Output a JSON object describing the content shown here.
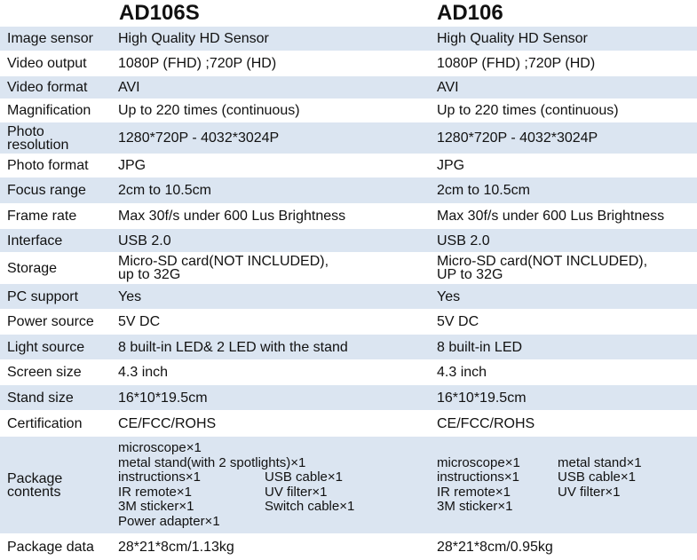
{
  "header": {
    "columns": [
      "AD106S",
      "AD106"
    ]
  },
  "rows": [
    {
      "label": [
        "Image sensor"
      ],
      "values": [
        [
          "High Quality HD Sensor"
        ],
        [
          "High Quality HD Sensor"
        ]
      ]
    },
    {
      "label": [
        "Video output"
      ],
      "values": [
        [
          "1080P (FHD) ;720P (HD)"
        ],
        [
          "1080P (FHD) ;720P (HD)"
        ]
      ]
    },
    {
      "label": [
        "Video format"
      ],
      "values": [
        [
          "AVI"
        ],
        [
          "AVI"
        ]
      ]
    },
    {
      "label": [
        "Magnification"
      ],
      "values": [
        [
          "Up to 220 times (continuous)"
        ],
        [
          "Up to 220 times (continuous)"
        ]
      ]
    },
    {
      "label": [
        "Photo",
        "resolution"
      ],
      "values": [
        [
          "1280*720P - 4032*3024P"
        ],
        [
          "1280*720P - 4032*3024P"
        ]
      ]
    },
    {
      "label": [
        "Photo format"
      ],
      "values": [
        [
          "JPG"
        ],
        [
          "JPG"
        ]
      ]
    },
    {
      "label": [
        "Focus range"
      ],
      "values": [
        [
          "2cm to 10.5cm"
        ],
        [
          "2cm to 10.5cm"
        ]
      ]
    },
    {
      "label": [
        "Frame rate"
      ],
      "values": [
        [
          "Max 30f/s under 600 Lus Brightness"
        ],
        [
          "Max 30f/s under 600 Lus Brightness"
        ]
      ]
    },
    {
      "label": [
        "Interface"
      ],
      "values": [
        [
          "USB 2.0"
        ],
        [
          "USB 2.0"
        ]
      ]
    },
    {
      "label": [
        "Storage"
      ],
      "values": [
        [
          "Micro-SD card(NOT INCLUDED),",
          "up to 32G"
        ],
        [
          "Micro-SD card(NOT INCLUDED),",
          "UP to 32G"
        ]
      ]
    },
    {
      "label": [
        "PC support"
      ],
      "values": [
        [
          "Yes"
        ],
        [
          "Yes"
        ]
      ]
    },
    {
      "label": [
        "Power source"
      ],
      "values": [
        [
          "5V DC"
        ],
        [
          "5V DC"
        ]
      ]
    },
    {
      "label": [
        "Light source"
      ],
      "values": [
        [
          "8 built-in LED& 2 LED with the stand"
        ],
        [
          "8 built-in LED"
        ]
      ]
    },
    {
      "label": [
        "Screen size"
      ],
      "values": [
        [
          "4.3 inch"
        ],
        [
          "4.3 inch"
        ]
      ]
    },
    {
      "label": [
        "Stand size"
      ],
      "values": [
        [
          "16*10*19.5cm"
        ],
        [
          "16*10*19.5cm"
        ]
      ]
    },
    {
      "label": [
        "Certification"
      ],
      "values": [
        [
          "CE/FCC/ROHS"
        ],
        [
          "CE/FCC/ROHS"
        ]
      ]
    },
    {
      "label": [
        "Package",
        "contents"
      ],
      "values": [
        [
          [
            "microscope×1"
          ],
          [
            "metal stand(with 2 spotlights)×1"
          ],
          [
            "instructions×1",
            "USB cable×1"
          ],
          [
            "IR remote×1",
            "UV filter×1"
          ],
          [
            "3M sticker×1",
            "Switch cable×1"
          ],
          [
            "Power adapter×1"
          ]
        ],
        [
          [
            "microscope×1",
            "metal stand×1"
          ],
          [
            "instructions×1",
            "USB cable×1"
          ],
          [
            "IR remote×1",
            "UV filter×1"
          ],
          [
            "3M sticker×1"
          ]
        ]
      ]
    },
    {
      "label": [
        "Package data"
      ],
      "values": [
        [
          "28*21*8cm/1.13kg"
        ],
        [
          "28*21*8cm/0.95kg"
        ]
      ]
    }
  ]
}
